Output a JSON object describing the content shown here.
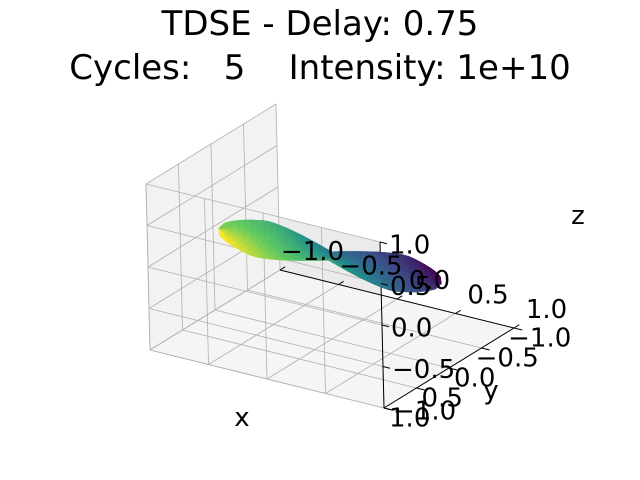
{
  "title_line1": "TDSE - Delay: 0.75",
  "title_line2": "Cycles:   5    Intensity: 1e+10",
  "chart_data": {
    "type": "surface3d",
    "title": "TDSE - Delay: 0.75\nCycles:   5    Intensity: 1e+10",
    "xlabel": "x",
    "ylabel": "y",
    "zlabel": "z",
    "xlim": [
      -1.0,
      1.0
    ],
    "ylim": [
      -1.0,
      1.0
    ],
    "zlim": [
      -1.0,
      1.0
    ],
    "x_ticks": [
      "−1.0",
      "−0.5",
      "0.0",
      "0.5",
      "1.0"
    ],
    "y_ticks": [
      "−1.0",
      "−0.5",
      "0.0",
      "0.5",
      "1.0"
    ],
    "z_ticks": [
      "−1.0",
      "−0.5",
      "0.0",
      "0.5",
      "1.0"
    ],
    "grid": true,
    "colormap": "viridis",
    "surface": {
      "shape": "dumbbell lobes along x",
      "x_extent": [
        -0.95,
        0.95
      ],
      "max_radius": 0.25
    }
  }
}
